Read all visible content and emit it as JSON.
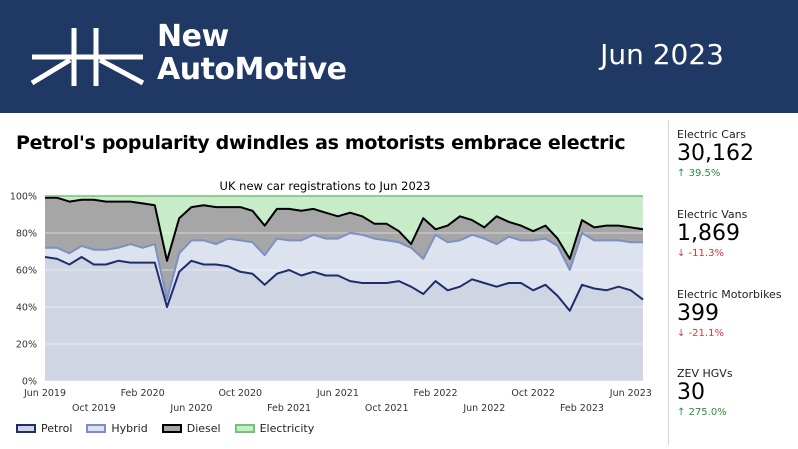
{
  "header": {
    "logo_line1": "New",
    "logo_line2": "AutoMotive",
    "date": "Jun 2023",
    "background": "#1f3864"
  },
  "main_title": "Petrol's popularity dwindles as motorists embrace electric",
  "stats": [
    {
      "label": "Electric Cars",
      "value": "30,162",
      "change": "39.5%",
      "direction": "up"
    },
    {
      "label": "Electric Vans",
      "value": "1,869",
      "change": "-11.3%",
      "direction": "down"
    },
    {
      "label": "Electric Motorbikes",
      "value": "399",
      "change": "-21.1%",
      "direction": "down"
    },
    {
      "label": "ZEV HGVs",
      "value": "30",
      "change": "275.0%",
      "direction": "up"
    }
  ],
  "chart_data": {
    "type": "area",
    "title": "UK new car registrations to  Jun 2023",
    "ylim": [
      0,
      100
    ],
    "y_ticks": [
      "0%",
      "20%",
      "40%",
      "60%",
      "80%",
      "100%"
    ],
    "x_tick_labels": [
      {
        "label": "Jun 2019",
        "i": 0,
        "row": 0
      },
      {
        "label": "Oct 2019",
        "i": 4,
        "row": 1
      },
      {
        "label": "Feb 2020",
        "i": 8,
        "row": 0
      },
      {
        "label": "Jun 2020",
        "i": 12,
        "row": 1
      },
      {
        "label": "Oct 2020",
        "i": 16,
        "row": 0
      },
      {
        "label": "Feb 2021",
        "i": 20,
        "row": 1
      },
      {
        "label": "Jun 2021",
        "i": 24,
        "row": 0
      },
      {
        "label": "Oct 2021",
        "i": 28,
        "row": 1
      },
      {
        "label": "Feb 2022",
        "i": 32,
        "row": 0
      },
      {
        "label": "Jun 2022",
        "i": 36,
        "row": 1
      },
      {
        "label": "Oct 2022",
        "i": 40,
        "row": 0
      },
      {
        "label": "Feb 2023",
        "i": 44,
        "row": 1
      },
      {
        "label": "Jun 2023",
        "i": 48,
        "row": 0
      }
    ],
    "series": [
      {
        "name": "Petrol",
        "color": "#1f2d6b",
        "fill": "#cfd5e3",
        "values": [
          67,
          66,
          63,
          67,
          63,
          63,
          65,
          64,
          64,
          64,
          40,
          59,
          65,
          63,
          63,
          62,
          59,
          58,
          52,
          58,
          60,
          57,
          59,
          57,
          57,
          54,
          53,
          53,
          53,
          54,
          51,
          47,
          54,
          49,
          51,
          55,
          53,
          51,
          53,
          53,
          49,
          52,
          46,
          38,
          52,
          50,
          49,
          51,
          49,
          44
        ]
      },
      {
        "name": "Hybrid",
        "color": "#7c90c4",
        "fill": "#dde3ee",
        "values": [
          72,
          72,
          69,
          73,
          71,
          71,
          72,
          74,
          72,
          74,
          44,
          69,
          76,
          76,
          74,
          77,
          76,
          75,
          68,
          77,
          76,
          76,
          79,
          77,
          77,
          80,
          79,
          77,
          76,
          75,
          72,
          66,
          79,
          75,
          76,
          79,
          77,
          74,
          78,
          76,
          76,
          77,
          73,
          60,
          80,
          76,
          76,
          76,
          75,
          75
        ]
      },
      {
        "name": "Diesel",
        "color": "#000000",
        "fill": "#a6a6a6",
        "values": [
          99,
          99,
          97,
          98,
          98,
          97,
          97,
          97,
          96,
          95,
          65,
          88,
          94,
          95,
          94,
          94,
          94,
          92,
          84,
          93,
          93,
          92,
          93,
          91,
          89,
          91,
          89,
          85,
          85,
          81,
          74,
          88,
          82,
          84,
          89,
          87,
          83,
          89,
          86,
          84,
          81,
          84,
          77,
          66,
          87,
          83,
          84,
          84,
          83,
          82
        ]
      },
      {
        "name": "Electricity",
        "color": "#74c274",
        "fill": "#c7ecc7",
        "values": [
          100,
          100,
          100,
          100,
          100,
          100,
          100,
          100,
          100,
          100,
          100,
          100,
          100,
          100,
          100,
          100,
          100,
          100,
          100,
          100,
          100,
          100,
          100,
          100,
          100,
          100,
          100,
          100,
          100,
          100,
          100,
          100,
          100,
          100,
          100,
          100,
          100,
          100,
          100,
          100,
          100,
          100,
          100,
          100,
          100,
          100,
          100,
          100,
          100,
          100
        ]
      }
    ],
    "legend_position": "bottom-left",
    "grid": true
  }
}
